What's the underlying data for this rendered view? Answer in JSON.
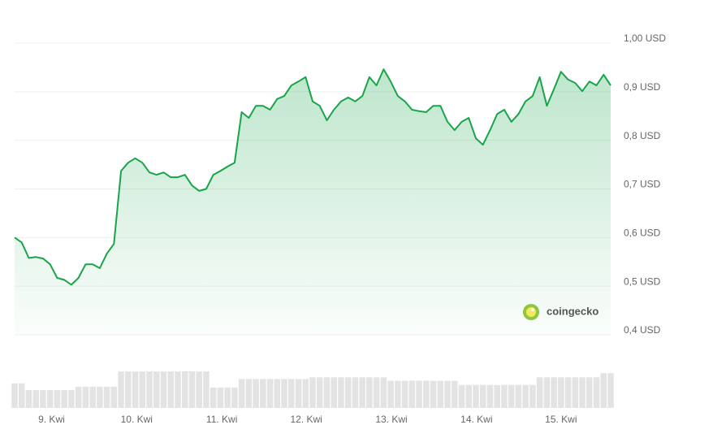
{
  "chart_data": {
    "type": "line",
    "series": [
      {
        "name": "Price",
        "color": "#18a54a",
        "values": [
          0.6,
          0.59,
          0.558,
          0.56,
          0.557,
          0.545,
          0.517,
          0.513,
          0.503,
          0.517,
          0.545,
          0.545,
          0.537,
          0.567,
          0.587,
          0.737,
          0.754,
          0.763,
          0.754,
          0.734,
          0.729,
          0.734,
          0.724,
          0.724,
          0.729,
          0.707,
          0.696,
          0.7,
          0.729,
          0.737,
          0.746,
          0.754,
          0.858,
          0.846,
          0.871,
          0.871,
          0.863,
          0.885,
          0.891,
          0.913,
          0.921,
          0.93,
          0.88,
          0.871,
          0.841,
          0.863,
          0.88,
          0.888,
          0.88,
          0.891,
          0.93,
          0.913,
          0.946,
          0.921,
          0.891,
          0.88,
          0.863,
          0.86,
          0.858,
          0.871,
          0.871,
          0.838,
          0.821,
          0.838,
          0.846,
          0.804,
          0.791,
          0.821,
          0.854,
          0.863,
          0.838,
          0.854,
          0.88,
          0.891,
          0.93,
          0.871,
          0.905,
          0.941,
          0.925,
          0.918,
          0.901,
          0.921,
          0.913,
          0.935,
          0.913
        ]
      }
    ],
    "volume": {
      "color": "#e3e3e3",
      "values": [
        29,
        29,
        21,
        21,
        21,
        21,
        21,
        21,
        21,
        25,
        25,
        25,
        25,
        25,
        25,
        43,
        43,
        43,
        43,
        43,
        43,
        43,
        43,
        43,
        43,
        43,
        43,
        43,
        24,
        24,
        24,
        24,
        34,
        34,
        34,
        34,
        34,
        34,
        34,
        34,
        34,
        34,
        36,
        36,
        36,
        36,
        36,
        36,
        36,
        36,
        36,
        36,
        36,
        32,
        32,
        32,
        32,
        32,
        32,
        32,
        32,
        32,
        32,
        27,
        27,
        27,
        27,
        27,
        27,
        27,
        27,
        27,
        27,
        27,
        36,
        36,
        36,
        36,
        36,
        36,
        36,
        36,
        36,
        41,
        41
      ]
    },
    "xlim": [
      0,
      84
    ],
    "xticks": [
      {
        "value": 5.2,
        "label": "9. Kwi"
      },
      {
        "value": 17.2,
        "label": "10. Kwi"
      },
      {
        "value": 29.2,
        "label": "11. Kwi"
      },
      {
        "value": 41.1,
        "label": "12. Kwi"
      },
      {
        "value": 53.1,
        "label": "13. Kwi"
      },
      {
        "value": 65.1,
        "label": "14. Kwi"
      },
      {
        "value": 77.0,
        "label": "15. Kwi"
      }
    ],
    "ylim": [
      0.4,
      1.0
    ],
    "yticks": [
      {
        "value": 1.0,
        "label": "1,00 USD"
      },
      {
        "value": 0.9,
        "label": "0,9 USD"
      },
      {
        "value": 0.8,
        "label": "0,8 USD"
      },
      {
        "value": 0.7,
        "label": "0,7 USD"
      },
      {
        "value": 0.6,
        "label": "0,6 USD"
      },
      {
        "value": 0.5,
        "label": "0,5 USD"
      },
      {
        "value": 0.4,
        "label": "0,4 USD"
      }
    ],
    "grid": true,
    "watermark": "coingecko"
  }
}
